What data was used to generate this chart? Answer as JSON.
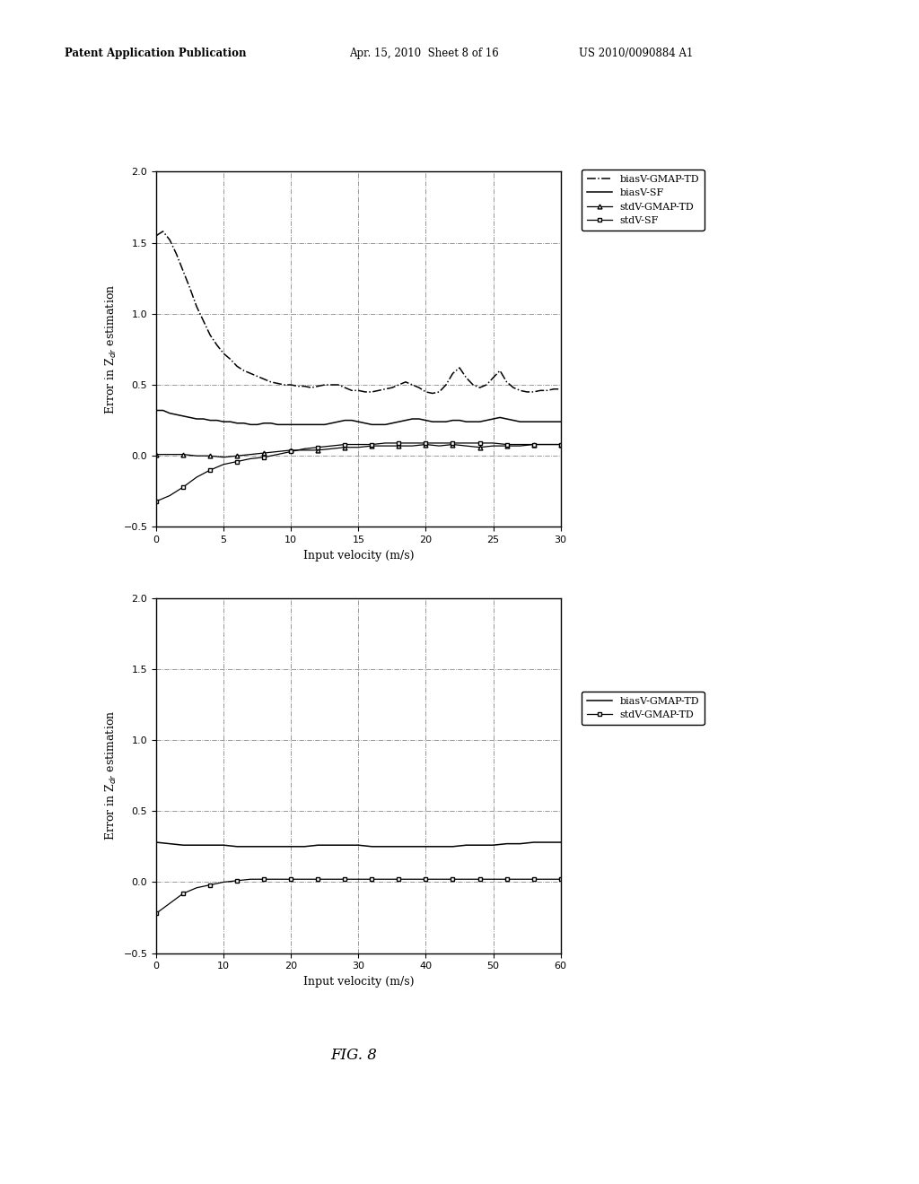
{
  "fig_width": 10.24,
  "fig_height": 13.2,
  "background_color": "#ffffff",
  "plot1": {
    "xlim": [
      0,
      30
    ],
    "ylim": [
      -0.5,
      2.0
    ],
    "xticks": [
      0,
      5,
      10,
      15,
      20,
      25,
      30
    ],
    "yticks": [
      -0.5,
      0,
      0.5,
      1.0,
      1.5,
      2.0
    ],
    "xlabel": "Input velocity (m/s)",
    "ylabel": "Error in Z$_{dr}$ estimation",
    "legend_entries": [
      "biasV-GMAP-TD",
      "biasV-SF",
      "stdV-GMAP-TD",
      "stdV-SF"
    ],
    "biasV_GMAP_TD_x": [
      0,
      0.5,
      1,
      1.5,
      2,
      2.5,
      3,
      3.5,
      4,
      4.5,
      5,
      5.5,
      6,
      6.5,
      7,
      7.5,
      8,
      8.5,
      9,
      9.5,
      10,
      10.5,
      11,
      11.5,
      12,
      12.5,
      13,
      13.5,
      14,
      14.5,
      15,
      15.5,
      16,
      16.5,
      17,
      17.5,
      18,
      18.5,
      19,
      19.5,
      20,
      20.5,
      21,
      21.5,
      22,
      22.5,
      23,
      23.5,
      24,
      24.5,
      25,
      25.5,
      26,
      26.5,
      27,
      27.5,
      28,
      28.5,
      29,
      29.5,
      30
    ],
    "biasV_GMAP_TD_y": [
      1.55,
      1.58,
      1.52,
      1.42,
      1.3,
      1.18,
      1.05,
      0.95,
      0.85,
      0.78,
      0.72,
      0.68,
      0.63,
      0.6,
      0.58,
      0.56,
      0.54,
      0.52,
      0.51,
      0.5,
      0.5,
      0.49,
      0.49,
      0.48,
      0.49,
      0.5,
      0.5,
      0.5,
      0.48,
      0.46,
      0.46,
      0.45,
      0.45,
      0.46,
      0.47,
      0.48,
      0.5,
      0.52,
      0.5,
      0.48,
      0.45,
      0.44,
      0.45,
      0.5,
      0.58,
      0.62,
      0.55,
      0.5,
      0.48,
      0.5,
      0.55,
      0.6,
      0.52,
      0.48,
      0.46,
      0.45,
      0.45,
      0.46,
      0.46,
      0.47,
      0.47
    ],
    "biasV_SF_x": [
      0,
      0.5,
      1,
      1.5,
      2,
      2.5,
      3,
      3.5,
      4,
      4.5,
      5,
      5.5,
      6,
      6.5,
      7,
      7.5,
      8,
      8.5,
      9,
      9.5,
      10,
      10.5,
      11,
      11.5,
      12,
      12.5,
      13,
      13.5,
      14,
      14.5,
      15,
      15.5,
      16,
      16.5,
      17,
      17.5,
      18,
      18.5,
      19,
      19.5,
      20,
      20.5,
      21,
      21.5,
      22,
      22.5,
      23,
      23.5,
      24,
      24.5,
      25,
      25.5,
      26,
      26.5,
      27,
      27.5,
      28,
      28.5,
      29,
      29.5,
      30
    ],
    "biasV_SF_y": [
      0.32,
      0.32,
      0.3,
      0.29,
      0.28,
      0.27,
      0.26,
      0.26,
      0.25,
      0.25,
      0.24,
      0.24,
      0.23,
      0.23,
      0.22,
      0.22,
      0.23,
      0.23,
      0.22,
      0.22,
      0.22,
      0.22,
      0.22,
      0.22,
      0.22,
      0.22,
      0.23,
      0.24,
      0.25,
      0.25,
      0.24,
      0.23,
      0.22,
      0.22,
      0.22,
      0.23,
      0.24,
      0.25,
      0.26,
      0.26,
      0.25,
      0.24,
      0.24,
      0.24,
      0.25,
      0.25,
      0.24,
      0.24,
      0.24,
      0.25,
      0.26,
      0.27,
      0.26,
      0.25,
      0.24,
      0.24,
      0.24,
      0.24,
      0.24,
      0.24,
      0.24
    ],
    "stdV_GMAP_TD_x": [
      0,
      1,
      2,
      3,
      4,
      5,
      6,
      7,
      8,
      9,
      10,
      11,
      12,
      13,
      14,
      15,
      16,
      17,
      18,
      19,
      20,
      21,
      22,
      23,
      24,
      25,
      26,
      27,
      28,
      29,
      30
    ],
    "stdV_GMAP_TD_y": [
      0.01,
      0.01,
      0.01,
      0.0,
      0.0,
      -0.01,
      0.0,
      0.01,
      0.02,
      0.03,
      0.04,
      0.04,
      0.04,
      0.05,
      0.06,
      0.06,
      0.07,
      0.07,
      0.07,
      0.07,
      0.08,
      0.07,
      0.08,
      0.07,
      0.06,
      0.07,
      0.07,
      0.07,
      0.08,
      0.08,
      0.08
    ],
    "stdV_SF_x": [
      0,
      1,
      2,
      3,
      4,
      5,
      6,
      7,
      8,
      9,
      10,
      11,
      12,
      13,
      14,
      15,
      16,
      17,
      18,
      19,
      20,
      21,
      22,
      23,
      24,
      25,
      26,
      27,
      28,
      29,
      30
    ],
    "stdV_SF_y": [
      -0.32,
      -0.28,
      -0.22,
      -0.15,
      -0.1,
      -0.06,
      -0.04,
      -0.02,
      -0.01,
      0.01,
      0.03,
      0.05,
      0.06,
      0.07,
      0.08,
      0.08,
      0.08,
      0.09,
      0.09,
      0.09,
      0.09,
      0.09,
      0.09,
      0.09,
      0.09,
      0.09,
      0.08,
      0.08,
      0.08,
      0.08,
      0.08
    ]
  },
  "plot2": {
    "xlim": [
      0,
      60
    ],
    "ylim": [
      -0.5,
      2.0
    ],
    "xticks": [
      0,
      10,
      20,
      30,
      40,
      50,
      60
    ],
    "yticks": [
      -0.5,
      0,
      0.5,
      1.0,
      1.5,
      2.0
    ],
    "xlabel": "Input velocity (m/s)",
    "ylabel": "Error in Z$_{dr}$ estimation",
    "legend_entries": [
      "biasV-GMAP-TD",
      "stdV-GMAP-TD"
    ],
    "biasV_GMAP_TD_x": [
      0,
      2,
      4,
      6,
      8,
      10,
      12,
      14,
      16,
      18,
      20,
      22,
      24,
      26,
      28,
      30,
      32,
      34,
      36,
      38,
      40,
      42,
      44,
      46,
      48,
      50,
      52,
      54,
      56,
      58,
      60
    ],
    "biasV_GMAP_TD_y": [
      0.28,
      0.27,
      0.26,
      0.26,
      0.26,
      0.26,
      0.25,
      0.25,
      0.25,
      0.25,
      0.25,
      0.25,
      0.26,
      0.26,
      0.26,
      0.26,
      0.25,
      0.25,
      0.25,
      0.25,
      0.25,
      0.25,
      0.25,
      0.26,
      0.26,
      0.26,
      0.27,
      0.27,
      0.28,
      0.28,
      0.28
    ],
    "stdV_GMAP_TD_x": [
      0,
      2,
      4,
      6,
      8,
      10,
      12,
      14,
      16,
      18,
      20,
      22,
      24,
      26,
      28,
      30,
      32,
      34,
      36,
      38,
      40,
      42,
      44,
      46,
      48,
      50,
      52,
      54,
      56,
      58,
      60
    ],
    "stdV_GMAP_TD_y": [
      -0.22,
      -0.15,
      -0.08,
      -0.04,
      -0.02,
      0.0,
      0.01,
      0.02,
      0.02,
      0.02,
      0.02,
      0.02,
      0.02,
      0.02,
      0.02,
      0.02,
      0.02,
      0.02,
      0.02,
      0.02,
      0.02,
      0.02,
      0.02,
      0.02,
      0.02,
      0.02,
      0.02,
      0.02,
      0.02,
      0.02,
      0.02
    ]
  },
  "fig_label": "FIG. 8"
}
